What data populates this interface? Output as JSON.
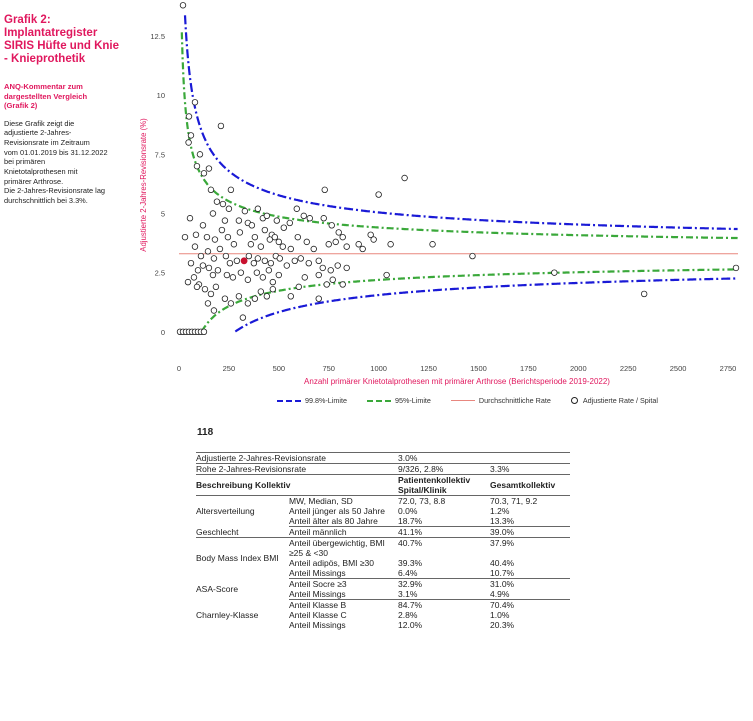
{
  "sidebar": {
    "title_lines": [
      "Grafik 2:",
      "Implantatregister",
      "SIRIS Hüfte und Knie",
      "- Knieprothetik"
    ],
    "subtitle_lines": [
      "ANQ-Kommentar zum",
      "dargestellten Vergleich",
      "(Grafik 2)"
    ],
    "body_lines": [
      "Diese Grafik zeigt die",
      "adjustierte 2-Jahres-",
      "Revisionsrate im Zeitraum",
      "vom 01.01.2019 bis 31.12.2022",
      "bei primären",
      "Knietotalprothesen mit",
      "primärer Arthrose.",
      "Die 2-Jahres-Revisionsrate lag",
      "durchschnittlich bei 3.3%."
    ]
  },
  "chart_data": {
    "type": "scatter",
    "title": "",
    "xlabel": "Anzahl primärer Knietotalprothesen mit primärer Arthrose (Berichtsperiode 2019-2022)",
    "ylabel": "Adjustierte 2-Jahres-Revisionsrate (%)",
    "xlim": [
      0,
      2800
    ],
    "ylim": [
      -0.6,
      13.6
    ],
    "xticks": [
      0,
      250,
      500,
      750,
      1000,
      1250,
      1500,
      1750,
      2000,
      2250,
      2500,
      2750
    ],
    "yticks": [
      0,
      2.5,
      5,
      7.5,
      10,
      12.5
    ],
    "ytick_labels": [
      "0",
      "2.5",
      "5",
      "7.5",
      "10",
      "12.5"
    ],
    "average_rate": 3.3,
    "legend": {
      "limit_998": "99.8%-Limite",
      "limit_95": "95%-Limite",
      "average": "Durchschnittliche Rate",
      "points": "Adjustierte Rate / Spital"
    },
    "colors": {
      "limit_998": "#1a1ad6",
      "limit_95": "#3aa83a",
      "average": "#e8877f",
      "highlight": "#c8102e"
    },
    "highlighted_point": {
      "x": 326,
      "y": 3.0
    },
    "points": [
      [
        20,
        13.8
      ],
      [
        50,
        9.1
      ],
      [
        60,
        8.3
      ],
      [
        48,
        8.0
      ],
      [
        80,
        9.7
      ],
      [
        105,
        7.5
      ],
      [
        90,
        7.0
      ],
      [
        125,
        6.7
      ],
      [
        150,
        6.9
      ],
      [
        210,
        8.7
      ],
      [
        160,
        6.0
      ],
      [
        190,
        5.5
      ],
      [
        220,
        5.4
      ],
      [
        170,
        5.0
      ],
      [
        250,
        5.2
      ],
      [
        260,
        6.0
      ],
      [
        230,
        4.7
      ],
      [
        300,
        4.7
      ],
      [
        330,
        5.1
      ],
      [
        345,
        4.6
      ],
      [
        365,
        4.5
      ],
      [
        395,
        5.2
      ],
      [
        420,
        4.8
      ],
      [
        440,
        4.9
      ],
      [
        465,
        4.1
      ],
      [
        490,
        4.7
      ],
      [
        525,
        4.4
      ],
      [
        555,
        4.6
      ],
      [
        590,
        5.2
      ],
      [
        625,
        4.9
      ],
      [
        655,
        4.8
      ],
      [
        730,
        6.0
      ],
      [
        725,
        4.8
      ],
      [
        765,
        4.5
      ],
      [
        800,
        4.2
      ],
      [
        1000,
        5.8
      ],
      [
        1130,
        6.5
      ],
      [
        55,
        4.8
      ],
      [
        30,
        4.0
      ],
      [
        85,
        4.1
      ],
      [
        120,
        4.5
      ],
      [
        140,
        4.0
      ],
      [
        180,
        3.9
      ],
      [
        215,
        4.3
      ],
      [
        245,
        4.0
      ],
      [
        275,
        3.7
      ],
      [
        305,
        4.2
      ],
      [
        360,
        3.7
      ],
      [
        380,
        4.0
      ],
      [
        410,
        3.6
      ],
      [
        430,
        4.3
      ],
      [
        455,
        3.9
      ],
      [
        480,
        4.0
      ],
      [
        500,
        3.8
      ],
      [
        520,
        3.6
      ],
      [
        560,
        3.5
      ],
      [
        595,
        4.0
      ],
      [
        640,
        3.8
      ],
      [
        675,
        3.5
      ],
      [
        750,
        3.7
      ],
      [
        785,
        3.8
      ],
      [
        820,
        4.0
      ],
      [
        840,
        3.6
      ],
      [
        900,
        3.7
      ],
      [
        920,
        3.5
      ],
      [
        975,
        3.9
      ],
      [
        960,
        4.1
      ],
      [
        1060,
        3.7
      ],
      [
        1270,
        3.7
      ],
      [
        1470,
        3.2
      ],
      [
        80,
        3.6
      ],
      [
        110,
        3.2
      ],
      [
        145,
        3.4
      ],
      [
        175,
        3.1
      ],
      [
        205,
        3.5
      ],
      [
        235,
        3.2
      ],
      [
        255,
        2.9
      ],
      [
        290,
        3.0
      ],
      [
        350,
        3.2
      ],
      [
        375,
        2.9
      ],
      [
        395,
        3.1
      ],
      [
        430,
        3.0
      ],
      [
        460,
        2.9
      ],
      [
        485,
        3.2
      ],
      [
        505,
        3.1
      ],
      [
        540,
        2.8
      ],
      [
        580,
        3.0
      ],
      [
        610,
        3.1
      ],
      [
        650,
        2.9
      ],
      [
        700,
        3.0
      ],
      [
        720,
        2.7
      ],
      [
        760,
        2.6
      ],
      [
        795,
        2.8
      ],
      [
        840,
        2.7
      ],
      [
        60,
        2.9
      ],
      [
        95,
        2.6
      ],
      [
        120,
        2.8
      ],
      [
        150,
        2.7
      ],
      [
        170,
        2.4
      ],
      [
        195,
        2.6
      ],
      [
        240,
        2.4
      ],
      [
        270,
        2.3
      ],
      [
        310,
        2.5
      ],
      [
        345,
        2.2
      ],
      [
        390,
        2.5
      ],
      [
        420,
        2.3
      ],
      [
        450,
        2.6
      ],
      [
        470,
        2.1
      ],
      [
        500,
        2.4
      ],
      [
        630,
        2.3
      ],
      [
        700,
        2.4
      ],
      [
        740,
        2.0
      ],
      [
        770,
        2.2
      ],
      [
        820,
        2.0
      ],
      [
        1040,
        2.4
      ],
      [
        1880,
        2.5
      ],
      [
        2790,
        2.7
      ],
      [
        2330,
        1.6
      ],
      [
        45,
        2.1
      ],
      [
        75,
        2.3
      ],
      [
        100,
        2.0
      ],
      [
        130,
        1.8
      ],
      [
        160,
        1.6
      ],
      [
        185,
        1.9
      ],
      [
        230,
        1.4
      ],
      [
        260,
        1.2
      ],
      [
        300,
        1.5
      ],
      [
        345,
        1.2
      ],
      [
        380,
        1.4
      ],
      [
        410,
        1.7
      ],
      [
        440,
        1.5
      ],
      [
        470,
        1.8
      ],
      [
        560,
        1.5
      ],
      [
        600,
        1.9
      ],
      [
        700,
        1.4
      ],
      [
        90,
        1.9
      ],
      [
        145,
        1.2
      ],
      [
        175,
        0.9
      ],
      [
        320,
        0.6
      ],
      [
        5,
        0.0
      ],
      [
        20,
        0.0
      ],
      [
        35,
        0.0
      ],
      [
        50,
        0.0
      ],
      [
        65,
        0.0
      ],
      [
        80,
        0.0
      ],
      [
        95,
        0.0
      ],
      [
        110,
        0.0
      ],
      [
        125,
        0.0
      ]
    ]
  },
  "clinic_id": "118",
  "stats": {
    "adj_rate_label": "Adjustierte 2-Jahres-Revisionsrate",
    "adj_rate_value": "3.0%",
    "raw_rate_label": "Rohe 2-Jahres-Revisionsrate",
    "raw_rate_value": "9/326, 2.8%",
    "raw_rate_total": "3.3%",
    "header_desc": "Beschreibung Kollektiv",
    "header_patients": "Patientenkollektiv Spital/Klinik",
    "header_total": "Gesamtkollektiv",
    "groups": [
      {
        "name": "Altersverteilung",
        "rows": [
          {
            "label": "MW, Median, SD",
            "clinic": "72.0, 73, 8.8",
            "total": "70.3, 71, 9.2"
          },
          {
            "label": "Anteil jünger als 50 Jahre",
            "clinic": "0.0%",
            "total": "1.2%"
          },
          {
            "label": "Anteil älter als 80 Jahre",
            "clinic": "18.7%",
            "total": "13.3%"
          }
        ]
      },
      {
        "name": "Geschlecht",
        "rows": [
          {
            "label": "Anteil männlich",
            "clinic": "41.1%",
            "total": "39.0%"
          }
        ]
      },
      {
        "name": "Body Mass Index BMI",
        "rows": [
          {
            "label": "Anteil übergewichtig, BMI ≥25 & <30",
            "clinic": "40.7%",
            "total": "37.9%"
          },
          {
            "label": "Anteil adipös, BMI ≥30",
            "clinic": "39.3%",
            "total": "40.4%"
          },
          {
            "label": "Anteil Missings",
            "clinic": "6.4%",
            "total": "10.7%"
          }
        ]
      },
      {
        "name": "ASA-Score",
        "rows": [
          {
            "label": "Anteil Socre ≥3",
            "clinic": "32.9%",
            "total": "31.0%"
          },
          {
            "label": "Anteil Missings",
            "clinic": "3.1%",
            "total": "4.9%"
          }
        ]
      },
      {
        "name": "Charnley-Klasse",
        "rows": [
          {
            "label": "Anteil Klasse B",
            "clinic": "84.7%",
            "total": "70.4%"
          },
          {
            "label": "Anteil Klasse C",
            "clinic": "2.8%",
            "total": "1.0%"
          },
          {
            "label": "Anteil Missings",
            "clinic": "12.0%",
            "total": "20.3%"
          }
        ]
      }
    ]
  }
}
